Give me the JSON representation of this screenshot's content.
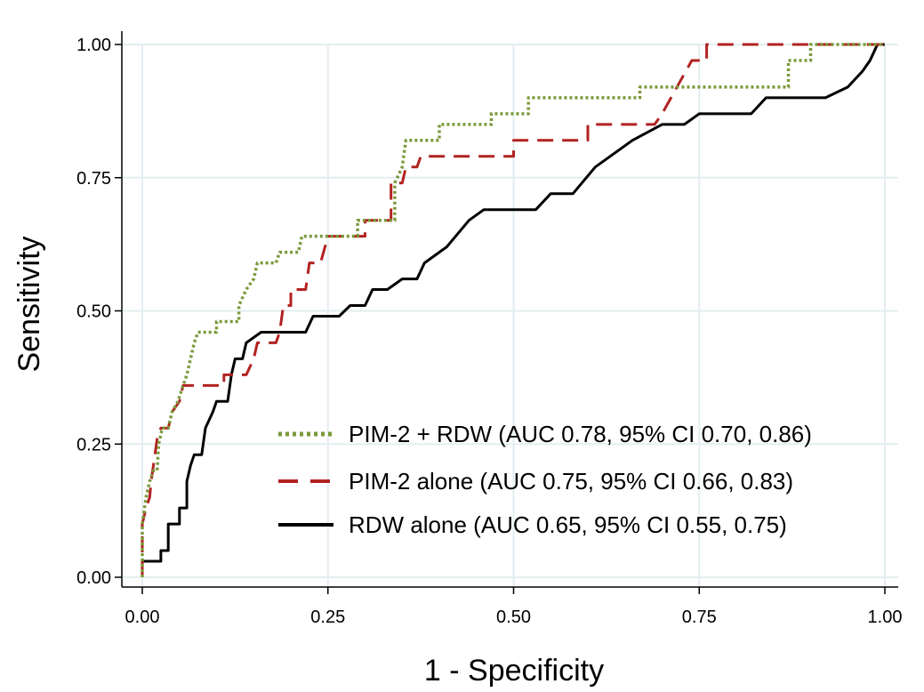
{
  "chart_data": {
    "type": "line",
    "xlabel": "1 -  Specificity",
    "ylabel": "Sensitivity",
    "xlim": [
      0,
      1
    ],
    "ylim": [
      0,
      1
    ],
    "grid": true,
    "legend_position": "bottom-right",
    "x_ticks": [
      "0.00",
      "0.25",
      "0.50",
      "0.75",
      "1.00"
    ],
    "y_ticks": [
      "0.00",
      "0.25",
      "0.50",
      "0.75",
      "1.00"
    ],
    "series": [
      {
        "name": "PIM-2 + RDW (AUC 0.78, 95% CI 0.70, 0.86)",
        "color": "#7a9a3a",
        "style": "dotted",
        "points": [
          [
            0,
            0
          ],
          [
            0,
            0.1
          ],
          [
            0.005,
            0.15
          ],
          [
            0.01,
            0.18
          ],
          [
            0.015,
            0.2
          ],
          [
            0.02,
            0.2
          ],
          [
            0.022,
            0.25
          ],
          [
            0.027,
            0.28
          ],
          [
            0.035,
            0.28
          ],
          [
            0.04,
            0.31
          ],
          [
            0.048,
            0.33
          ],
          [
            0.055,
            0.36
          ],
          [
            0.06,
            0.38
          ],
          [
            0.065,
            0.41
          ],
          [
            0.07,
            0.44
          ],
          [
            0.075,
            0.46
          ],
          [
            0.1,
            0.46
          ],
          [
            0.1,
            0.48
          ],
          [
            0.13,
            0.48
          ],
          [
            0.13,
            0.51
          ],
          [
            0.14,
            0.54
          ],
          [
            0.15,
            0.56
          ],
          [
            0.155,
            0.59
          ],
          [
            0.18,
            0.59
          ],
          [
            0.185,
            0.61
          ],
          [
            0.21,
            0.61
          ],
          [
            0.215,
            0.64
          ],
          [
            0.29,
            0.64
          ],
          [
            0.29,
            0.67
          ],
          [
            0.34,
            0.67
          ],
          [
            0.34,
            0.74
          ],
          [
            0.35,
            0.77
          ],
          [
            0.355,
            0.82
          ],
          [
            0.4,
            0.82
          ],
          [
            0.4,
            0.85
          ],
          [
            0.47,
            0.85
          ],
          [
            0.47,
            0.87
          ],
          [
            0.52,
            0.87
          ],
          [
            0.52,
            0.9
          ],
          [
            0.67,
            0.9
          ],
          [
            0.67,
            0.92
          ],
          [
            0.87,
            0.92
          ],
          [
            0.87,
            0.97
          ],
          [
            0.9,
            0.97
          ],
          [
            0.9,
            1.0
          ],
          [
            1.0,
            1.0
          ]
        ]
      },
      {
        "name": "PIM-2 alone (AUC 0.75, 95% CI 0.66, 0.83)",
        "color": "#b22222",
        "style": "dashed",
        "points": [
          [
            0,
            0
          ],
          [
            0,
            0.1
          ],
          [
            0.005,
            0.13
          ],
          [
            0.01,
            0.15
          ],
          [
            0.012,
            0.18
          ],
          [
            0.015,
            0.21
          ],
          [
            0.02,
            0.26
          ],
          [
            0.025,
            0.28
          ],
          [
            0.035,
            0.28
          ],
          [
            0.04,
            0.31
          ],
          [
            0.05,
            0.33
          ],
          [
            0.055,
            0.36
          ],
          [
            0.11,
            0.36
          ],
          [
            0.11,
            0.38
          ],
          [
            0.14,
            0.38
          ],
          [
            0.15,
            0.41
          ],
          [
            0.155,
            0.44
          ],
          [
            0.18,
            0.44
          ],
          [
            0.185,
            0.46
          ],
          [
            0.19,
            0.51
          ],
          [
            0.2,
            0.51
          ],
          [
            0.2,
            0.54
          ],
          [
            0.22,
            0.54
          ],
          [
            0.225,
            0.59
          ],
          [
            0.24,
            0.59
          ],
          [
            0.25,
            0.64
          ],
          [
            0.3,
            0.64
          ],
          [
            0.3,
            0.67
          ],
          [
            0.335,
            0.67
          ],
          [
            0.335,
            0.74
          ],
          [
            0.35,
            0.74
          ],
          [
            0.355,
            0.77
          ],
          [
            0.37,
            0.77
          ],
          [
            0.375,
            0.79
          ],
          [
            0.5,
            0.79
          ],
          [
            0.5,
            0.82
          ],
          [
            0.6,
            0.82
          ],
          [
            0.6,
            0.85
          ],
          [
            0.69,
            0.85
          ],
          [
            0.7,
            0.87
          ],
          [
            0.72,
            0.92
          ],
          [
            0.74,
            0.97
          ],
          [
            0.76,
            0.97
          ],
          [
            0.76,
            1.0
          ],
          [
            1.0,
            1.0
          ]
        ]
      },
      {
        "name": "RDW alone (AUC 0.65, 95% CI 0.55, 0.75)",
        "color": "#000000",
        "style": "solid",
        "points": [
          [
            0,
            0
          ],
          [
            0,
            0.03
          ],
          [
            0.025,
            0.03
          ],
          [
            0.025,
            0.05
          ],
          [
            0.035,
            0.05
          ],
          [
            0.035,
            0.1
          ],
          [
            0.05,
            0.1
          ],
          [
            0.05,
            0.13
          ],
          [
            0.06,
            0.13
          ],
          [
            0.06,
            0.18
          ],
          [
            0.065,
            0.21
          ],
          [
            0.07,
            0.23
          ],
          [
            0.08,
            0.23
          ],
          [
            0.085,
            0.28
          ],
          [
            0.095,
            0.31
          ],
          [
            0.1,
            0.33
          ],
          [
            0.115,
            0.33
          ],
          [
            0.12,
            0.38
          ],
          [
            0.125,
            0.41
          ],
          [
            0.135,
            0.41
          ],
          [
            0.14,
            0.44
          ],
          [
            0.16,
            0.46
          ],
          [
            0.22,
            0.46
          ],
          [
            0.23,
            0.49
          ],
          [
            0.265,
            0.49
          ],
          [
            0.28,
            0.51
          ],
          [
            0.3,
            0.51
          ],
          [
            0.31,
            0.54
          ],
          [
            0.33,
            0.54
          ],
          [
            0.35,
            0.56
          ],
          [
            0.37,
            0.56
          ],
          [
            0.38,
            0.59
          ],
          [
            0.41,
            0.62
          ],
          [
            0.44,
            0.67
          ],
          [
            0.46,
            0.69
          ],
          [
            0.53,
            0.69
          ],
          [
            0.55,
            0.72
          ],
          [
            0.58,
            0.72
          ],
          [
            0.61,
            0.77
          ],
          [
            0.64,
            0.8
          ],
          [
            0.66,
            0.82
          ],
          [
            0.7,
            0.85
          ],
          [
            0.73,
            0.85
          ],
          [
            0.75,
            0.87
          ],
          [
            0.82,
            0.87
          ],
          [
            0.84,
            0.9
          ],
          [
            0.92,
            0.9
          ],
          [
            0.95,
            0.92
          ],
          [
            0.97,
            0.95
          ],
          [
            0.98,
            0.97
          ],
          [
            0.99,
            1.0
          ],
          [
            1.0,
            1.0
          ]
        ]
      }
    ]
  }
}
